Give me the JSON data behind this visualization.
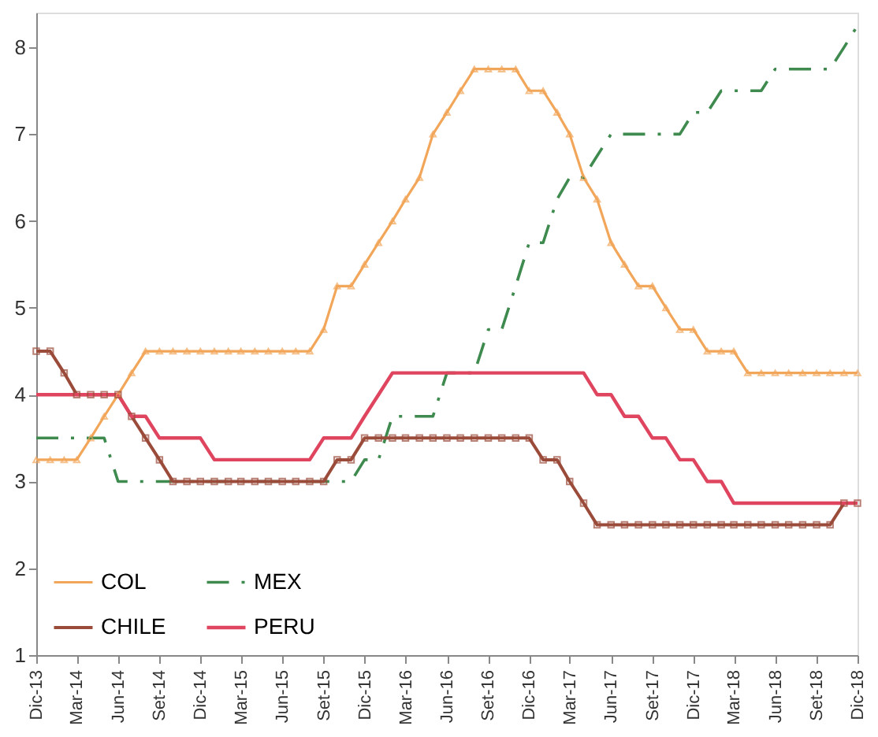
{
  "chart_data": {
    "type": "line",
    "x": [
      "2013-12",
      "2014-01",
      "2014-02",
      "2014-03",
      "2014-04",
      "2014-05",
      "2014-06",
      "2014-07",
      "2014-08",
      "2014-09",
      "2014-10",
      "2014-11",
      "2014-12",
      "2015-01",
      "2015-02",
      "2015-03",
      "2015-04",
      "2015-05",
      "2015-06",
      "2015-07",
      "2015-08",
      "2015-09",
      "2015-10",
      "2015-11",
      "2015-12",
      "2016-01",
      "2016-02",
      "2016-03",
      "2016-04",
      "2016-05",
      "2016-06",
      "2016-07",
      "2016-08",
      "2016-09",
      "2016-10",
      "2016-11",
      "2016-12",
      "2017-01",
      "2017-02",
      "2017-03",
      "2017-04",
      "2017-05",
      "2017-06",
      "2017-07",
      "2017-08",
      "2017-09",
      "2017-10",
      "2017-11",
      "2017-12",
      "2018-01",
      "2018-02",
      "2018-03",
      "2018-04",
      "2018-05",
      "2018-06",
      "2018-07",
      "2018-08",
      "2018-09",
      "2018-10",
      "2018-11",
      "2018-12"
    ],
    "series": [
      {
        "name": "COL",
        "color": "#f2a65a",
        "marker": "triangle",
        "line_style": "solid",
        "values": [
          3.25,
          3.25,
          3.25,
          3.25,
          3.5,
          3.75,
          4.0,
          4.25,
          4.5,
          4.5,
          4.5,
          4.5,
          4.5,
          4.5,
          4.5,
          4.5,
          4.5,
          4.5,
          4.5,
          4.5,
          4.5,
          4.75,
          5.25,
          5.25,
          5.5,
          5.75,
          6.0,
          6.25,
          6.5,
          7.0,
          7.25,
          7.5,
          7.75,
          7.75,
          7.75,
          7.75,
          7.5,
          7.5,
          7.25,
          7.0,
          6.5,
          6.25,
          5.75,
          5.5,
          5.25,
          5.25,
          5.0,
          4.75,
          4.75,
          4.5,
          4.5,
          4.5,
          4.25,
          4.25,
          4.25,
          4.25,
          4.25,
          4.25,
          4.25,
          4.25,
          4.25
        ]
      },
      {
        "name": "MEX",
        "color": "#3f8a4f",
        "marker": "none",
        "line_style": "dashed",
        "values": [
          3.5,
          3.5,
          3.5,
          3.5,
          3.5,
          3.5,
          3.0,
          3.0,
          3.0,
          3.0,
          3.0,
          3.0,
          3.0,
          3.0,
          3.0,
          3.0,
          3.0,
          3.0,
          3.0,
          3.0,
          3.0,
          3.0,
          3.0,
          3.0,
          3.25,
          3.25,
          3.75,
          3.75,
          3.75,
          3.75,
          4.25,
          4.25,
          4.25,
          4.75,
          4.75,
          5.25,
          5.75,
          5.75,
          6.25,
          6.5,
          6.5,
          6.75,
          7.0,
          7.0,
          7.0,
          7.0,
          7.0,
          7.0,
          7.25,
          7.25,
          7.5,
          7.5,
          7.5,
          7.5,
          7.75,
          7.75,
          7.75,
          7.75,
          7.75,
          8.0,
          8.25
        ]
      },
      {
        "name": "CHILE",
        "color": "#9b4b3a",
        "marker": "square",
        "line_style": "solid",
        "values": [
          4.5,
          4.5,
          4.25,
          4.0,
          4.0,
          4.0,
          4.0,
          3.75,
          3.5,
          3.25,
          3.0,
          3.0,
          3.0,
          3.0,
          3.0,
          3.0,
          3.0,
          3.0,
          3.0,
          3.0,
          3.0,
          3.0,
          3.25,
          3.25,
          3.5,
          3.5,
          3.5,
          3.5,
          3.5,
          3.5,
          3.5,
          3.5,
          3.5,
          3.5,
          3.5,
          3.5,
          3.5,
          3.25,
          3.25,
          3.0,
          2.75,
          2.5,
          2.5,
          2.5,
          2.5,
          2.5,
          2.5,
          2.5,
          2.5,
          2.5,
          2.5,
          2.5,
          2.5,
          2.5,
          2.5,
          2.5,
          2.5,
          2.5,
          2.5,
          2.75,
          2.75
        ]
      },
      {
        "name": "PERU",
        "color": "#e0455f",
        "marker": "none",
        "line_style": "solid",
        "values": [
          4.0,
          4.0,
          4.0,
          4.0,
          4.0,
          4.0,
          4.0,
          3.75,
          3.75,
          3.5,
          3.5,
          3.5,
          3.5,
          3.25,
          3.25,
          3.25,
          3.25,
          3.25,
          3.25,
          3.25,
          3.25,
          3.5,
          3.5,
          3.5,
          3.75,
          4.0,
          4.25,
          4.25,
          4.25,
          4.25,
          4.25,
          4.25,
          4.25,
          4.25,
          4.25,
          4.25,
          4.25,
          4.25,
          4.25,
          4.25,
          4.25,
          4.0,
          4.0,
          3.75,
          3.75,
          3.5,
          3.5,
          3.25,
          3.25,
          3.0,
          3.0,
          2.75,
          2.75,
          2.75,
          2.75,
          2.75,
          2.75,
          2.75,
          2.75,
          2.75,
          2.75
        ]
      }
    ],
    "xlim": [
      "2013-12",
      "2018-12"
    ],
    "xticks": [
      {
        "value": "2013-12",
        "label": "Dic-13"
      },
      {
        "value": "2014-03",
        "label": "Mar-14"
      },
      {
        "value": "2014-06",
        "label": "Jun-14"
      },
      {
        "value": "2014-09",
        "label": "Set-14"
      },
      {
        "value": "2014-12",
        "label": "Dic-14"
      },
      {
        "value": "2015-03",
        "label": "Mar-15"
      },
      {
        "value": "2015-06",
        "label": "Jun-15"
      },
      {
        "value": "2015-09",
        "label": "Set-15"
      },
      {
        "value": "2015-12",
        "label": "Dic-15"
      },
      {
        "value": "2016-03",
        "label": "Mar-16"
      },
      {
        "value": "2016-06",
        "label": "Jun-16"
      },
      {
        "value": "2016-09",
        "label": "Set-16"
      },
      {
        "value": "2016-12",
        "label": "Dic-16"
      },
      {
        "value": "2017-03",
        "label": "Mar-17"
      },
      {
        "value": "2017-06",
        "label": "Jun-17"
      },
      {
        "value": "2017-09",
        "label": "Set-17"
      },
      {
        "value": "2017-12",
        "label": "Dic-17"
      },
      {
        "value": "2018-03",
        "label": "Mar-18"
      },
      {
        "value": "2018-06",
        "label": "Jun-18"
      },
      {
        "value": "2018-09",
        "label": "Set-18"
      },
      {
        "value": "2018-12",
        "label": "Dic-18"
      }
    ],
    "ylim": [
      1,
      8.4
    ],
    "yticks": [
      1,
      2,
      3,
      4,
      5,
      6,
      7,
      8
    ],
    "grid": false,
    "legend": "bottom left"
  }
}
